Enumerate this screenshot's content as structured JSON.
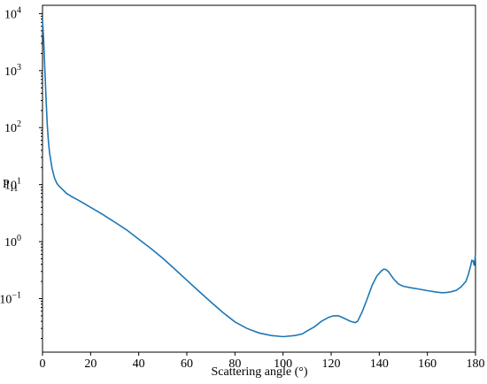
{
  "chart_data": {
    "type": "line",
    "title": "",
    "xlabel": "Scattering angle (°)",
    "ylabel_main": "P",
    "ylabel_sub": "11",
    "xlim": [
      0,
      180
    ],
    "ylim": [
      0.0115,
      14000
    ],
    "yscale": "log",
    "grid": false,
    "legend": "none",
    "x_ticks": [
      "0",
      "20",
      "40",
      "60",
      "80",
      "100",
      "120",
      "140",
      "160",
      "180"
    ],
    "y_ticks": [
      {
        "value": 0.1,
        "base": "10",
        "exp": "−1"
      },
      {
        "value": 1,
        "base": "10",
        "exp": "0"
      },
      {
        "value": 10,
        "base": "10",
        "exp": "1"
      },
      {
        "value": 100,
        "base": "10",
        "exp": "2"
      },
      {
        "value": 1000,
        "base": "10",
        "exp": "3"
      },
      {
        "value": 10000,
        "base": "10",
        "exp": "4"
      }
    ],
    "series": [
      {
        "color": "#1f77b4",
        "x": [
          0,
          0.5,
          1,
          1.5,
          2,
          2.5,
          3,
          4,
          5,
          6,
          7,
          8,
          10,
          12,
          15,
          20,
          25,
          30,
          35,
          40,
          45,
          50,
          55,
          60,
          65,
          70,
          75,
          80,
          85,
          90,
          95,
          100,
          105,
          108,
          110,
          113,
          116,
          119,
          121,
          123,
          124,
          126,
          128,
          130,
          131,
          133,
          135,
          137,
          139,
          141,
          142,
          143,
          144,
          146,
          148,
          150,
          153,
          156,
          160,
          164,
          166,
          168,
          170,
          172,
          174,
          176,
          177,
          178,
          178.5,
          179,
          179.5,
          180
        ],
        "y": [
          8000,
          3200,
          1000,
          300,
          110,
          55,
          35,
          19,
          13,
          10.5,
          9.3,
          8.5,
          7.0,
          6.2,
          5.3,
          4.0,
          3.0,
          2.2,
          1.6,
          1.1,
          0.76,
          0.51,
          0.33,
          0.21,
          0.135,
          0.087,
          0.057,
          0.039,
          0.03,
          0.025,
          0.0225,
          0.0215,
          0.0225,
          0.024,
          0.027,
          0.032,
          0.04,
          0.047,
          0.05,
          0.05,
          0.048,
          0.044,
          0.04,
          0.038,
          0.04,
          0.06,
          0.1,
          0.17,
          0.25,
          0.31,
          0.33,
          0.32,
          0.29,
          0.22,
          0.18,
          0.165,
          0.155,
          0.148,
          0.138,
          0.13,
          0.127,
          0.128,
          0.132,
          0.14,
          0.16,
          0.2,
          0.26,
          0.38,
          0.47,
          0.46,
          0.38,
          0.6
        ]
      }
    ]
  }
}
